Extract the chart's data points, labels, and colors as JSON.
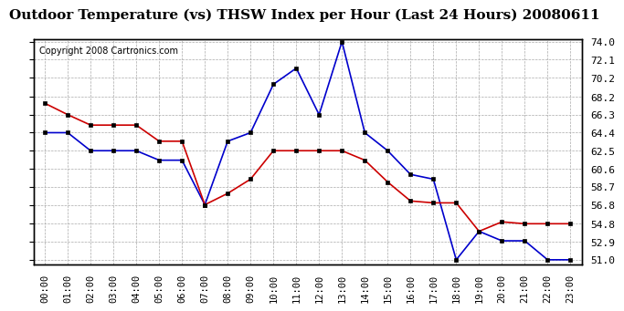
{
  "title": "Outdoor Temperature (vs) THSW Index per Hour (Last 24 Hours) 20080611",
  "copyright": "Copyright 2008 Cartronics.com",
  "hours": [
    "00:00",
    "01:00",
    "02:00",
    "03:00",
    "04:00",
    "05:00",
    "06:00",
    "07:00",
    "08:00",
    "09:00",
    "10:00",
    "11:00",
    "12:00",
    "13:00",
    "14:00",
    "15:00",
    "16:00",
    "17:00",
    "18:00",
    "19:00",
    "20:00",
    "21:00",
    "22:00",
    "23:00"
  ],
  "temp_red": [
    67.5,
    66.3,
    65.2,
    65.2,
    65.2,
    63.5,
    63.5,
    56.8,
    58.0,
    59.5,
    62.5,
    62.5,
    62.5,
    62.5,
    61.5,
    59.2,
    57.2,
    57.0,
    57.0,
    54.0,
    55.0,
    54.8,
    54.8,
    54.8
  ],
  "thsw_blue": [
    64.4,
    64.4,
    62.5,
    62.5,
    62.5,
    61.5,
    61.5,
    56.8,
    63.5,
    64.4,
    69.5,
    71.2,
    66.3,
    74.0,
    64.4,
    62.5,
    60.0,
    59.5,
    51.0,
    54.0,
    53.0,
    53.0,
    51.0,
    51.0
  ],
  "ylim_min": 51.0,
  "ylim_max": 74.0,
  "yticks": [
    51.0,
    52.9,
    54.8,
    56.8,
    58.7,
    60.6,
    62.5,
    64.4,
    66.3,
    68.2,
    70.2,
    72.1,
    74.0
  ],
  "red_color": "#cc0000",
  "blue_color": "#0000cc",
  "bg_color": "#ffffff",
  "grid_color": "#aaaaaa",
  "title_fontsize": 11,
  "copyright_fontsize": 7
}
